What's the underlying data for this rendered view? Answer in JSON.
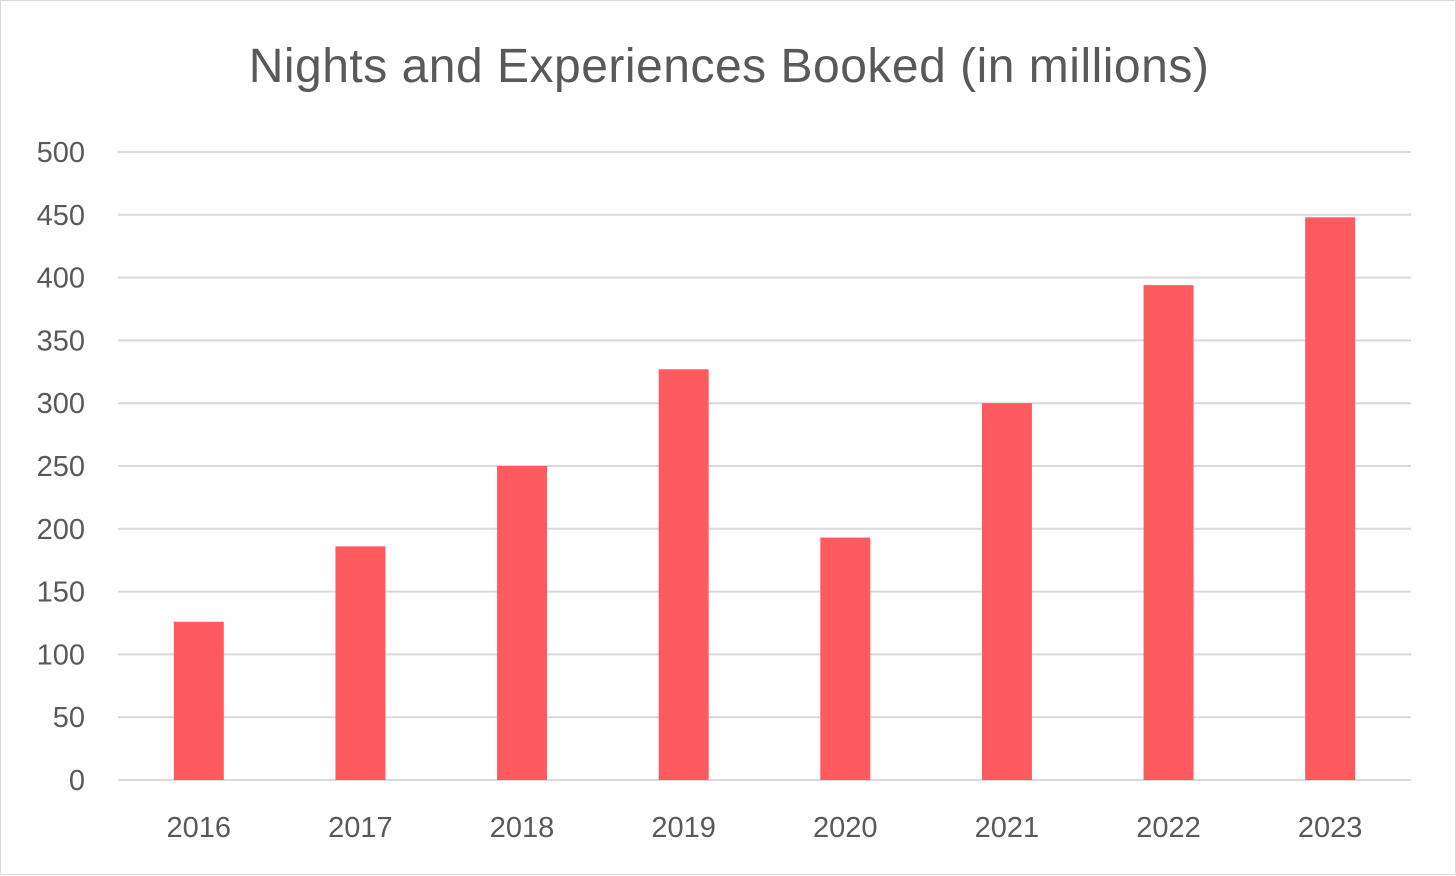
{
  "chart_data": {
    "type": "bar",
    "title": "Nights and Experiences Booked (in millions)",
    "xlabel": "",
    "ylabel": "",
    "categories": [
      "2016",
      "2017",
      "2018",
      "2019",
      "2020",
      "2021",
      "2022",
      "2023"
    ],
    "values": [
      126,
      186,
      250,
      327,
      193,
      300,
      394,
      448
    ],
    "ylim": [
      0,
      500
    ],
    "yticks": [
      0,
      50,
      100,
      150,
      200,
      250,
      300,
      350,
      400,
      450,
      500
    ],
    "grid": true,
    "legend": "none",
    "bar_color": "#ff5a5f",
    "grid_color": "#d9d9d9",
    "text_color": "#595959"
  }
}
